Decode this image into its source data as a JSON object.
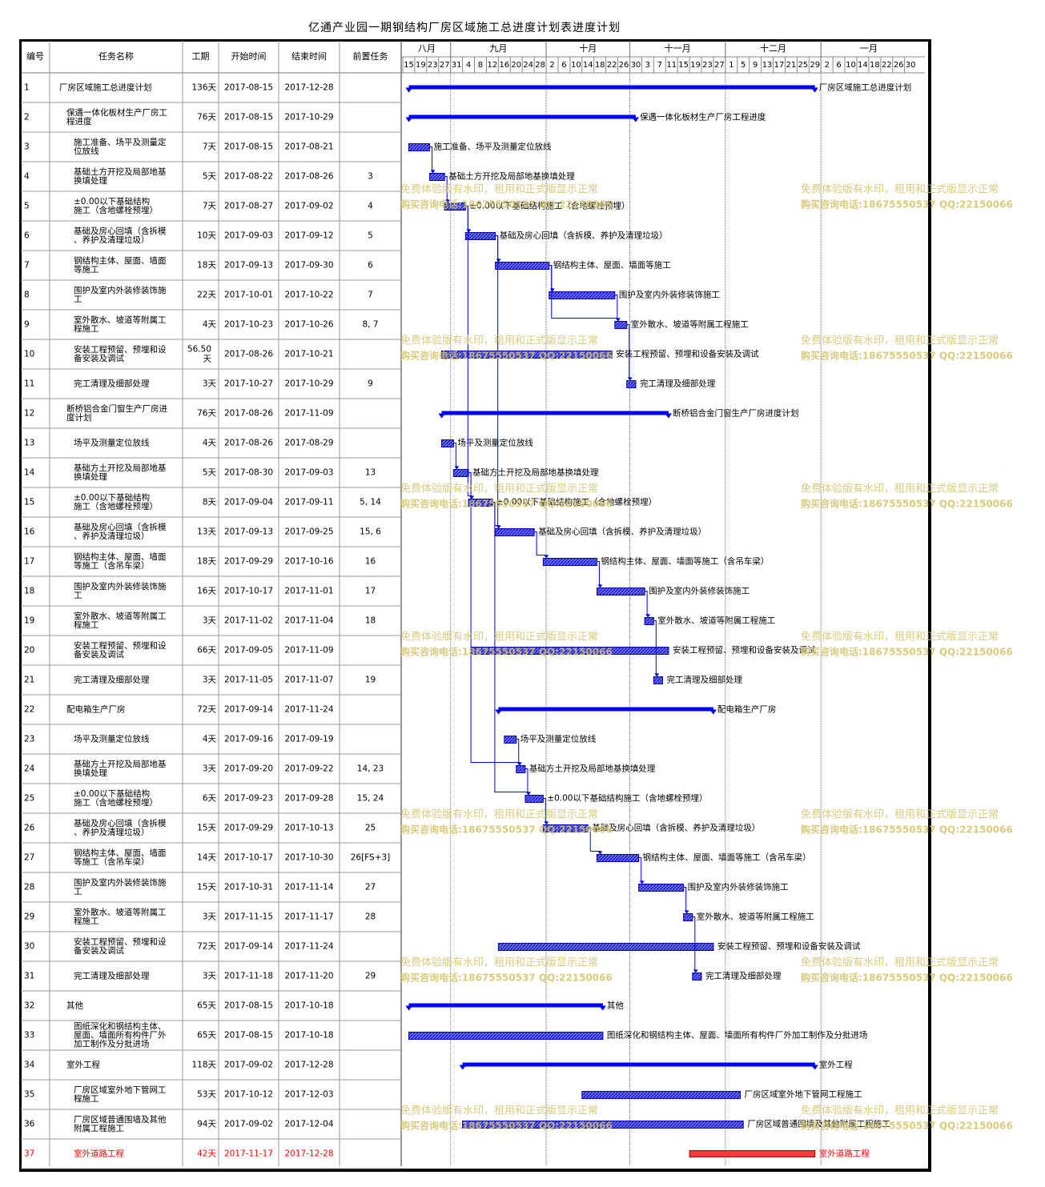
{
  "title": "亿通产业园一期钢结构厂房区域施工总进度计划表进度计划",
  "headers": {
    "id": "编号",
    "name": "任务名称",
    "duration": "工期",
    "start": "开始时间",
    "end": "结束时间",
    "pred": "前置任务"
  },
  "watermark": {
    "line1": "免费体验版有水印，租用和正式版显示正常",
    "line2": "购买咨询电话:18675550537 QQ:22150066"
  },
  "timeline": {
    "months": [
      {
        "label": "八月",
        "days": [
          "15",
          "19",
          "23",
          "27"
        ]
      },
      {
        "label": "九月",
        "days": [
          "31",
          "4",
          "8",
          "12",
          "16",
          "20",
          "24",
          "28"
        ]
      },
      {
        "label": "十月",
        "days": [
          "2",
          "6",
          "10",
          "14",
          "18",
          "22",
          "26"
        ]
      },
      {
        "label": "十一月",
        "days": [
          "30",
          "3",
          "7",
          "11",
          "15",
          "19",
          "23",
          "27"
        ]
      },
      {
        "label": "十二月",
        "days": [
          "1",
          "5",
          "9",
          "13",
          "17",
          "21",
          "25",
          "29"
        ]
      },
      {
        "label": "一月",
        "days": [
          "2",
          "6",
          "10",
          "14",
          "18",
          "22",
          "26",
          "30"
        ]
      }
    ]
  },
  "colors": {
    "summary": "#0000ff",
    "task_fill": "#6d6dfc",
    "task_border": "#0000aa",
    "critical": "#ee3b3b",
    "critical_text": "#ff0000",
    "link": "#0000ff",
    "watermark": "#d2c36a"
  },
  "chart_data": {
    "type": "gantt",
    "title": "亿通产业园一期钢结构厂房区域施工总进度计划表进度计划",
    "tasks": [
      {
        "id": "1",
        "name": "厂房区域施工总进度计划",
        "duration": "136天",
        "start": "2017-08-15",
        "end": "2017-12-28",
        "pred": "",
        "level": 0,
        "kind": "summary",
        "bar_label": "厂房区域施工总进度计划"
      },
      {
        "id": "2",
        "name": "保遇一体化板材生产厂房工程进度",
        "duration": "76天",
        "start": "2017-08-15",
        "end": "2017-10-29",
        "pred": "",
        "level": 1,
        "kind": "summary",
        "bar_label": "保遇一体化板材生产厂房工程进度"
      },
      {
        "id": "3",
        "name": "施工准备、场平及测量定位放线",
        "duration": "7天",
        "start": "2017-08-15",
        "end": "2017-08-21",
        "pred": "",
        "level": 2,
        "kind": "task",
        "bar_label": "施工准备、场平及测量定位放线"
      },
      {
        "id": "4",
        "name": "基础土方开挖及局部地基换填处理",
        "duration": "5天",
        "start": "2017-08-22",
        "end": "2017-08-26",
        "pred": "3",
        "level": 2,
        "kind": "task",
        "bar_label": "基础土方开挖及局部地基换填处理"
      },
      {
        "id": "5",
        "name": "±0.00以下基础结构施工（含地螺栓预埋）",
        "duration": "7天",
        "start": "2017-08-27",
        "end": "2017-09-02",
        "pred": "4",
        "level": 2,
        "kind": "task",
        "bar_label": "±0.00以下基础结构施工（含地螺栓预埋）"
      },
      {
        "id": "6",
        "name": "基础及房心回填（含拆模、养护及清理垃圾）",
        "duration": "10天",
        "start": "2017-09-03",
        "end": "2017-09-12",
        "pred": "5",
        "level": 2,
        "kind": "task",
        "bar_label": "基础及房心回填（含拆模、养护及清理垃圾）"
      },
      {
        "id": "7",
        "name": "钢结构主体、屋面、墙面等施工",
        "duration": "18天",
        "start": "2017-09-13",
        "end": "2017-09-30",
        "pred": "6",
        "level": 2,
        "kind": "task",
        "bar_label": "钢结构主体、屋面、墙面等施工"
      },
      {
        "id": "8",
        "name": "围护及室内外装修装饰施工",
        "duration": "22天",
        "start": "2017-10-01",
        "end": "2017-10-22",
        "pred": "7",
        "level": 2,
        "kind": "task",
        "bar_label": "围护及室内外装修装饰施工"
      },
      {
        "id": "9",
        "name": "室外散水、坡道等附属工程施工",
        "duration": "4天",
        "start": "2017-10-23",
        "end": "2017-10-26",
        "pred": "8, 7",
        "level": 2,
        "kind": "task",
        "bar_label": "室外散水、坡道等附属工程施工"
      },
      {
        "id": "10",
        "name": "安装工程预留、预埋和设备安装及调试",
        "duration": "56.50天",
        "start": "2017-08-26",
        "end": "2017-10-21",
        "pred": "",
        "level": 2,
        "kind": "task",
        "bar_label": "安装工程预留、预埋和设备安装及调试"
      },
      {
        "id": "11",
        "name": "完工清理及细部处理",
        "duration": "3天",
        "start": "2017-10-27",
        "end": "2017-10-29",
        "pred": "9",
        "level": 2,
        "kind": "task",
        "bar_label": "完工清理及细部处理"
      },
      {
        "id": "12",
        "name": "断桥铝合金门窗生产厂房进度计划",
        "duration": "76天",
        "start": "2017-08-26",
        "end": "2017-11-09",
        "pred": "",
        "level": 1,
        "kind": "summary",
        "bar_label": "断桥铝合金门窗生产厂房进度计划"
      },
      {
        "id": "13",
        "name": "场平及测量定位放线",
        "duration": "4天",
        "start": "2017-08-26",
        "end": "2017-08-29",
        "pred": "",
        "level": 2,
        "kind": "task",
        "bar_label": "场平及测量定位放线"
      },
      {
        "id": "14",
        "name": "基础方土开挖及局部地基换填处理",
        "duration": "5天",
        "start": "2017-08-30",
        "end": "2017-09-03",
        "pred": "13",
        "level": 2,
        "kind": "task",
        "bar_label": "基础方土开挖及局部地基换填处理"
      },
      {
        "id": "15",
        "name": "±0.00以下基础结构施工（含地螺栓预埋）",
        "duration": "8天",
        "start": "2017-09-04",
        "end": "2017-09-11",
        "pred": "5, 14",
        "level": 2,
        "kind": "task",
        "bar_label": "±0.00以下基础结构施工（含地螺栓预埋）"
      },
      {
        "id": "16",
        "name": "基础及房心回填（含拆模、养护及清理垃圾）",
        "duration": "13天",
        "start": "2017-09-13",
        "end": "2017-09-25",
        "pred": "15, 6",
        "level": 2,
        "kind": "task",
        "bar_label": "基础及房心回填（含拆模、养护及清理垃圾）"
      },
      {
        "id": "17",
        "name": "钢结构主体、屋面、墙面等施工（含吊车梁）",
        "duration": "18天",
        "start": "2017-09-29",
        "end": "2017-10-16",
        "pred": "16",
        "level": 2,
        "kind": "task",
        "bar_label": "钢结构主体、屋面、墙面等施工（含吊车梁）"
      },
      {
        "id": "18",
        "name": "围护及室内外装修装饰施工",
        "duration": "16天",
        "start": "2017-10-17",
        "end": "2017-11-01",
        "pred": "17",
        "level": 2,
        "kind": "task",
        "bar_label": "围护及室内外装修装饰施工"
      },
      {
        "id": "19",
        "name": "室外散水、坡道等附属工程施工",
        "duration": "3天",
        "start": "2017-11-02",
        "end": "2017-11-04",
        "pred": "18",
        "level": 2,
        "kind": "task",
        "bar_label": "室外散水、坡道等附属工程施工"
      },
      {
        "id": "20",
        "name": "安装工程预留、预埋和设备安装及调试",
        "duration": "66天",
        "start": "2017-09-05",
        "end": "2017-11-09",
        "pred": "",
        "level": 2,
        "kind": "task",
        "bar_label": "安装工程预留、预埋和设备安装及调试"
      },
      {
        "id": "21",
        "name": "完工清理及细部处理",
        "duration": "3天",
        "start": "2017-11-05",
        "end": "2017-11-07",
        "pred": "19",
        "level": 2,
        "kind": "task",
        "bar_label": "完工清理及细部处理"
      },
      {
        "id": "22",
        "name": "配电箱生产厂房",
        "duration": "72天",
        "start": "2017-09-14",
        "end": "2017-11-24",
        "pred": "",
        "level": 1,
        "kind": "summary",
        "bar_label": "配电箱生产厂房"
      },
      {
        "id": "23",
        "name": "场平及测量定位放线",
        "duration": "4天",
        "start": "2017-09-16",
        "end": "2017-09-19",
        "pred": "",
        "level": 2,
        "kind": "task",
        "bar_label": "场平及测量定位放线"
      },
      {
        "id": "24",
        "name": "基础方土开挖及局部地基换填处理",
        "duration": "3天",
        "start": "2017-09-20",
        "end": "2017-09-22",
        "pred": "14, 23",
        "level": 2,
        "kind": "task",
        "bar_label": "基础方土开挖及局部地基换填处理"
      },
      {
        "id": "25",
        "name": "±0.00以下基础结构施工（含地螺栓预埋）",
        "duration": "6天",
        "start": "2017-09-23",
        "end": "2017-09-28",
        "pred": "15, 24",
        "level": 2,
        "kind": "task",
        "bar_label": "±0.00以下基础结构施工（含地螺栓预埋）"
      },
      {
        "id": "26",
        "name": "基础及房心回填（含拆模、养护及清理垃圾）",
        "duration": "15天",
        "start": "2017-09-29",
        "end": "2017-10-13",
        "pred": "25",
        "level": 2,
        "kind": "task",
        "bar_label": "基础及房心回填（含拆模、养护及清理垃圾）"
      },
      {
        "id": "27",
        "name": "钢结构主体、屋面、墙面等施工（含吊车梁）",
        "duration": "14天",
        "start": "2017-10-17",
        "end": "2017-10-30",
        "pred": "26[FS+3]",
        "level": 2,
        "kind": "task",
        "bar_label": "钢结构主体、屋面、墙面等施工（含吊车梁）"
      },
      {
        "id": "28",
        "name": "围护及室内外装修装饰施工",
        "duration": "15天",
        "start": "2017-10-31",
        "end": "2017-11-14",
        "pred": "27",
        "level": 2,
        "kind": "task",
        "bar_label": "围护及室内外装修装饰施工"
      },
      {
        "id": "29",
        "name": "室外散水、坡道等附属工程施工",
        "duration": "3天",
        "start": "2017-11-15",
        "end": "2017-11-17",
        "pred": "28",
        "level": 2,
        "kind": "task",
        "bar_label": "室外散水、坡道等附属工程施工"
      },
      {
        "id": "30",
        "name": "安装工程预留、预埋和设备安装及调试",
        "duration": "72天",
        "start": "2017-09-14",
        "end": "2017-11-24",
        "pred": "",
        "level": 2,
        "kind": "task",
        "bar_label": "安装工程预留、预埋和设备安装及调试"
      },
      {
        "id": "31",
        "name": "完工清理及细部处理",
        "duration": "3天",
        "start": "2017-11-18",
        "end": "2017-11-20",
        "pred": "29",
        "level": 2,
        "kind": "task",
        "bar_label": "完工清理及细部处理"
      },
      {
        "id": "32",
        "name": "其他",
        "duration": "65天",
        "start": "2017-08-15",
        "end": "2017-10-18",
        "pred": "",
        "level": 1,
        "kind": "summary",
        "bar_label": "其他"
      },
      {
        "id": "33",
        "name": "图纸深化和钢结构主体、屋面、墙面所有构件厂外加工制作及分批进场",
        "duration": "65天",
        "start": "2017-08-15",
        "end": "2017-10-18",
        "pred": "",
        "level": 2,
        "kind": "task",
        "bar_label": "图纸深化和钢结构主体、屋面、墙面所有构件厂外加工制作及分批进场"
      },
      {
        "id": "34",
        "name": "室外工程",
        "duration": "118天",
        "start": "2017-09-02",
        "end": "2017-12-28",
        "pred": "",
        "level": 1,
        "kind": "summary",
        "bar_label": "室外工程"
      },
      {
        "id": "35",
        "name": "厂房区域室外地下管网工程施工",
        "duration": "53天",
        "start": "2017-10-12",
        "end": "2017-12-03",
        "pred": "",
        "level": 2,
        "kind": "task",
        "bar_label": "厂房区域室外地下管网工程施工"
      },
      {
        "id": "36",
        "name": "厂房区域普通围墙及其他附属工程施工",
        "duration": "94天",
        "start": "2017-09-02",
        "end": "2017-12-04",
        "pred": "",
        "level": 2,
        "kind": "task",
        "bar_label": "厂房区域普通围墙及其他附属工程施工"
      },
      {
        "id": "37",
        "name": "室外道路工程",
        "duration": "42天",
        "start": "2017-11-17",
        "end": "2017-12-28",
        "pred": "",
        "level": 2,
        "kind": "critical",
        "bar_label": "室外道路工程"
      }
    ]
  }
}
